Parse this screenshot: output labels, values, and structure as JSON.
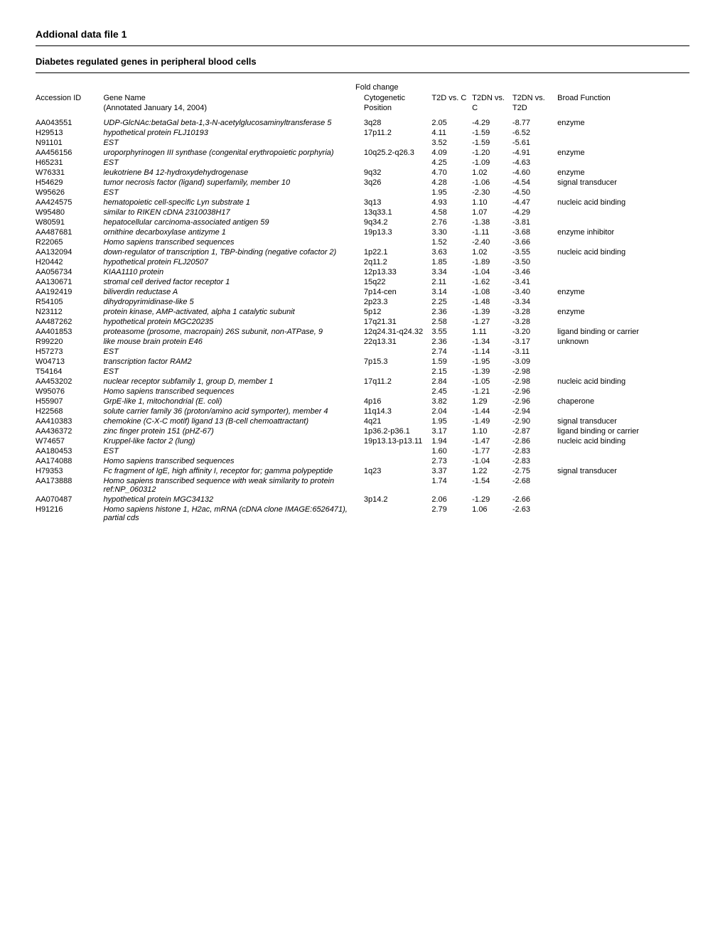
{
  "title": "Addional data file 1",
  "subtitle": "Diabetes  regulated  genes in peripheral blood cells",
  "fold_change_label": "Fold change",
  "columns": {
    "accession": "Accession ID",
    "gene": "Gene Name",
    "annot_date": "(Annotated January 14, 2004)",
    "cyto": "Cytogenetic Position",
    "t2d_c": "T2D vs. C",
    "t2dn_c": "T2DN vs. C",
    "t2dn_t2d": "T2DN vs. T2D",
    "func": "Broad Function"
  },
  "rows": [
    {
      "acc": "AA043551",
      "gene": "UDP-GlcNAc:betaGal beta-1,3-N-acetylglucosaminyltransferase 5",
      "cyto": "3q28",
      "a": "2.05",
      "b": "-4.29",
      "c": "-8.77",
      "func": "enzyme"
    },
    {
      "acc": "H29513",
      "gene": "hypothetical protein FLJ10193",
      "cyto": "17p11.2",
      "a": "4.11",
      "b": "-1.59",
      "c": "-6.52",
      "func": ""
    },
    {
      "acc": "N91101",
      "gene": "EST",
      "cyto": "",
      "a": "3.52",
      "b": "-1.59",
      "c": "-5.61",
      "func": ""
    },
    {
      "acc": "AA456156",
      "gene": "uroporphyrinogen III synthase (congenital erythropoietic porphyria)",
      "cyto": "10q25.2-q26.3",
      "a": "4.09",
      "b": "-1.20",
      "c": "-4.91",
      "func": "enzyme"
    },
    {
      "acc": "H65231",
      "gene": "EST",
      "cyto": "",
      "a": "4.25",
      "b": "-1.09",
      "c": "-4.63",
      "func": ""
    },
    {
      "acc": "W76331",
      "gene": "leukotriene B4 12-hydroxydehydrogenase",
      "cyto": "9q32",
      "a": "4.70",
      "b": "1.02",
      "c": "-4.60",
      "func": "enzyme"
    },
    {
      "acc": "H54629",
      "gene": "tumor necrosis factor (ligand) superfamily, member 10",
      "cyto": "3q26",
      "a": "4.28",
      "b": "-1.06",
      "c": "-4.54",
      "func": "signal transducer"
    },
    {
      "acc": "W95626",
      "gene": "EST",
      "cyto": "",
      "a": "1.95",
      "b": "-2.30",
      "c": "-4.50",
      "func": ""
    },
    {
      "acc": "AA424575",
      "gene": "hematopoietic cell-specific Lyn substrate 1",
      "cyto": "3q13",
      "a": "4.93",
      "b": "1.10",
      "c": "-4.47",
      "func": "nucleic acid binding"
    },
    {
      "acc": "W95480",
      "gene": "similar to RIKEN cDNA 2310038H17",
      "cyto": "13q33.1",
      "a": "4.58",
      "b": "1.07",
      "c": "-4.29",
      "func": ""
    },
    {
      "acc": "W80591",
      "gene": "hepatocellular carcinoma-associated antigen 59",
      "cyto": "9q34.2",
      "a": "2.76",
      "b": "-1.38",
      "c": "-3.81",
      "func": ""
    },
    {
      "acc": "AA487681",
      "gene": "ornithine decarboxylase antizyme 1",
      "cyto": "19p13.3",
      "a": "3.30",
      "b": "-1.11",
      "c": "-3.68",
      "func": "enzyme inhibitor"
    },
    {
      "acc": "R22065",
      "gene": "Homo sapiens transcribed sequences",
      "cyto": "",
      "a": "1.52",
      "b": "-2.40",
      "c": "-3.66",
      "func": ""
    },
    {
      "acc": "AA132094",
      "gene": "down-regulator of transcription 1, TBP-binding (negative cofactor 2)",
      "cyto": "1p22.1",
      "a": "3.63",
      "b": "1.02",
      "c": "-3.55",
      "func": "nucleic acid binding"
    },
    {
      "acc": "H20442",
      "gene": "hypothetical protein FLJ20507",
      "cyto": "2q11.2",
      "a": "1.85",
      "b": "-1.89",
      "c": "-3.50",
      "func": ""
    },
    {
      "acc": "AA056734",
      "gene": "KIAA1110 protein",
      "cyto": "12p13.33",
      "a": "3.34",
      "b": "-1.04",
      "c": "-3.46",
      "func": ""
    },
    {
      "acc": "AA130671",
      "gene": "stromal cell derived factor receptor 1",
      "cyto": "15q22",
      "a": "2.11",
      "b": "-1.62",
      "c": "-3.41",
      "func": ""
    },
    {
      "acc": "AA192419",
      "gene": "biliverdin reductase A",
      "cyto": "7p14-cen",
      "a": "3.14",
      "b": "-1.08",
      "c": "-3.40",
      "func": "enzyme"
    },
    {
      "acc": "R54105",
      "gene": "dihydropyrimidinase-like 5",
      "cyto": "2p23.3",
      "a": "2.25",
      "b": "-1.48",
      "c": "-3.34",
      "func": ""
    },
    {
      "acc": "N23112",
      "gene": "protein kinase, AMP-activated, alpha 1 catalytic subunit",
      "cyto": "5p12",
      "a": "2.36",
      "b": "-1.39",
      "c": "-3.28",
      "func": "enzyme"
    },
    {
      "acc": "AA487262",
      "gene": "hypothetical protein MGC20235",
      "cyto": "17q21.31",
      "a": "2.58",
      "b": "-1.27",
      "c": "-3.28",
      "func": ""
    },
    {
      "acc": "AA401853",
      "gene": "proteasome (prosome, macropain) 26S subunit, non-ATPase, 9",
      "cyto": "12q24.31-q24.32",
      "a": "3.55",
      "b": "1.11",
      "c": "-3.20",
      "func": "ligand binding or carrier"
    },
    {
      "acc": "R99220",
      "gene": "like mouse brain protein E46",
      "cyto": "22q13.31",
      "a": "2.36",
      "b": "-1.34",
      "c": "-3.17",
      "func": "unknown"
    },
    {
      "acc": "H57273",
      "gene": "EST",
      "cyto": "",
      "a": "2.74",
      "b": "-1.14",
      "c": "-3.11",
      "func": ""
    },
    {
      "acc": "W04713",
      "gene": "transcription factor RAM2",
      "cyto": "7p15.3",
      "a": "1.59",
      "b": "-1.95",
      "c": "-3.09",
      "func": ""
    },
    {
      "acc": "T54164",
      "gene": "EST",
      "cyto": "",
      "a": "2.15",
      "b": "-1.39",
      "c": "-2.98",
      "func": ""
    },
    {
      "acc": "AA453202",
      "gene": "nuclear receptor subfamily 1, group D, member 1",
      "cyto": "17q11.2",
      "a": "2.84",
      "b": "-1.05",
      "c": "-2.98",
      "func": "nucleic acid binding"
    },
    {
      "acc": "W95076",
      "gene": "Homo sapiens transcribed sequences",
      "cyto": "",
      "a": "2.45",
      "b": "-1.21",
      "c": "-2.96",
      "func": ""
    },
    {
      "acc": "H55907",
      "gene": "GrpE-like 1, mitochondrial (E. coli)",
      "cyto": "4p16",
      "a": "3.82",
      "b": "1.29",
      "c": "-2.96",
      "func": "chaperone"
    },
    {
      "acc": "H22568",
      "gene": "solute carrier family 36 (proton/amino acid symporter), member 4",
      "cyto": "11q14.3",
      "a": "2.04",
      "b": "-1.44",
      "c": "-2.94",
      "func": ""
    },
    {
      "acc": "AA410383",
      "gene": "chemokine (C-X-C motif) ligand 13 (B-cell chemoattractant)",
      "cyto": "4q21",
      "a": "1.95",
      "b": "-1.49",
      "c": "-2.90",
      "func": "signal transducer"
    },
    {
      "acc": "AA436372",
      "gene": "zinc finger protein 151 (pHZ-67)",
      "cyto": "1p36.2-p36.1",
      "a": "3.17",
      "b": "1.10",
      "c": "-2.87",
      "func": "ligand binding or carrier"
    },
    {
      "acc": "W74657",
      "gene": "Kruppel-like factor 2 (lung)",
      "cyto": "19p13.13-p13.11",
      "a": "1.94",
      "b": "-1.47",
      "c": "-2.86",
      "func": "nucleic acid binding"
    },
    {
      "acc": "AA180453",
      "gene": "EST",
      "cyto": "",
      "a": "1.60",
      "b": "-1.77",
      "c": "-2.83",
      "func": ""
    },
    {
      "acc": "AA174088",
      "gene": "Homo sapiens transcribed sequences",
      "cyto": "",
      "a": "2.73",
      "b": "-1.04",
      "c": "-2.83",
      "func": ""
    },
    {
      "acc": "H79353",
      "gene": "Fc fragment of IgE, high affinity I, receptor for; gamma polypeptide",
      "cyto": "1q23",
      "a": "3.37",
      "b": "1.22",
      "c": "-2.75",
      "func": "signal transducer"
    },
    {
      "acc": "AA173888",
      "gene": "Homo sapiens transcribed sequence with weak similarity to protein ref:NP_060312",
      "cyto": "",
      "a": "1.74",
      "b": "-1.54",
      "c": "-2.68",
      "func": ""
    },
    {
      "acc": "AA070487",
      "gene": "hypothetical protein MGC34132",
      "cyto": "3p14.2",
      "a": "2.06",
      "b": "-1.29",
      "c": "-2.66",
      "func": ""
    },
    {
      "acc": "H91216",
      "gene": "Homo sapiens histone 1, H2ac, mRNA (cDNA clone IMAGE:6526471), partial cds",
      "cyto": "",
      "a": "2.79",
      "b": "1.06",
      "c": "-2.63",
      "func": ""
    }
  ]
}
